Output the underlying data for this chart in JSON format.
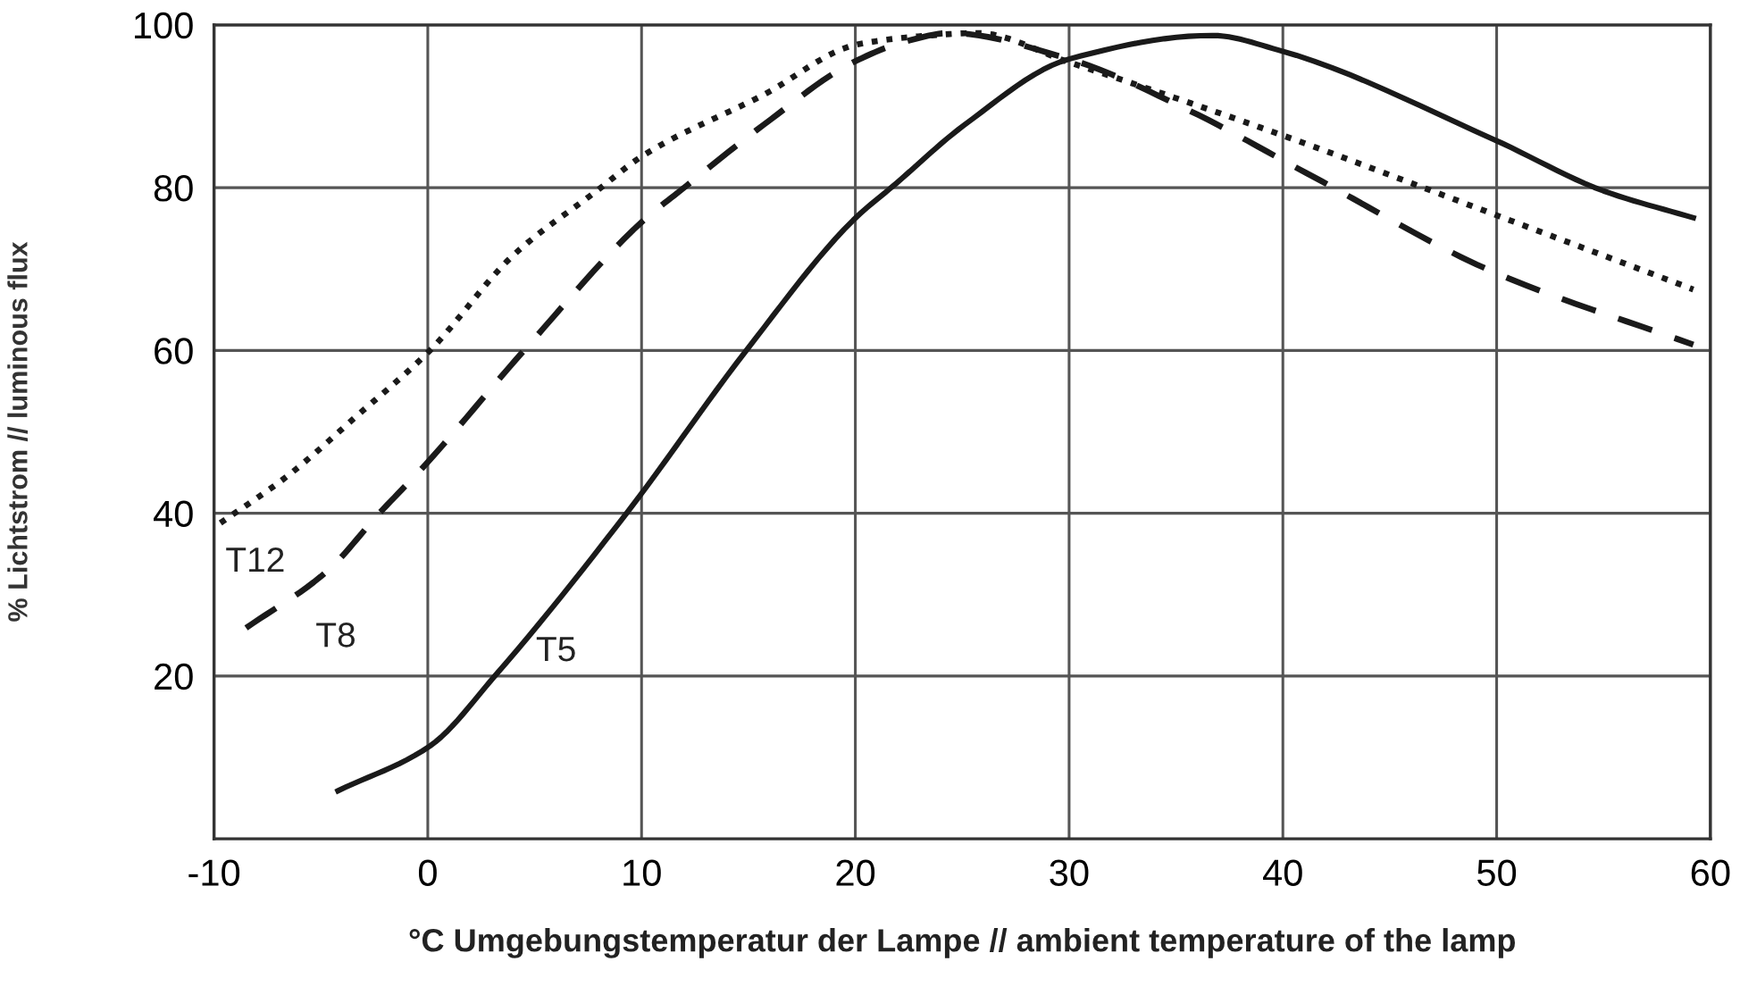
{
  "chart_data": {
    "type": "line",
    "xlabel": "°C Umgebungstemperatur der Lampe // ambient temperature of the lamp",
    "ylabel": "% Lichtstrom // luminous flux",
    "xlim": [
      -10,
      60
    ],
    "xticks": [
      -10,
      0,
      10,
      20,
      30,
      40,
      50,
      60
    ],
    "ylim": [
      0,
      100
    ],
    "yticks": [
      20,
      40,
      60,
      80,
      100
    ],
    "grid": true,
    "legend": false,
    "marker": "none",
    "series": [
      {
        "name": "T12",
        "color": "#1a1a1a",
        "line_style": "dotted",
        "x": [
          -9.7,
          -6.6,
          -3.3,
          0.1,
          4,
          7.9,
          10.1,
          15.7,
          20.1,
          23.5,
          25.7,
          30,
          39.8,
          49.8,
          59.2
        ],
        "values": [
          38.8,
          44.5,
          52,
          60,
          71.7,
          79.6,
          84,
          91.4,
          97.6,
          98.7,
          99,
          95.4,
          86.6,
          76.8,
          67.5
        ]
      },
      {
        "name": "T8",
        "color": "#1a1a1a",
        "line_style": "dashed",
        "x": [
          -8.5,
          -4.7,
          -2.3,
          -0.1,
          4.5,
          10.1,
          11.8,
          15.7,
          19.9,
          22.4,
          24.4,
          30,
          35.6,
          41.1,
          49.8,
          59.2
        ],
        "values": [
          25.9,
          32.9,
          39.9,
          46,
          60,
          76,
          79.6,
          87.7,
          95.4,
          98,
          99,
          95.8,
          89.5,
          81.8,
          69.7,
          60.7
        ]
      },
      {
        "name": "T5",
        "color": "#1a1a1a",
        "line_style": "solid",
        "x": [
          -4.2,
          0.1,
          3.2,
          9.3,
          14.9,
          19.9,
          21.9,
          25.1,
          30,
          36.7,
          39.8,
          49.8,
          55,
          59.2
        ],
        "values": [
          5.9,
          11.4,
          20.2,
          40,
          60,
          76,
          80.5,
          87.7,
          95.8,
          98.7,
          96.9,
          86,
          79.6,
          76.3
        ]
      }
    ]
  }
}
